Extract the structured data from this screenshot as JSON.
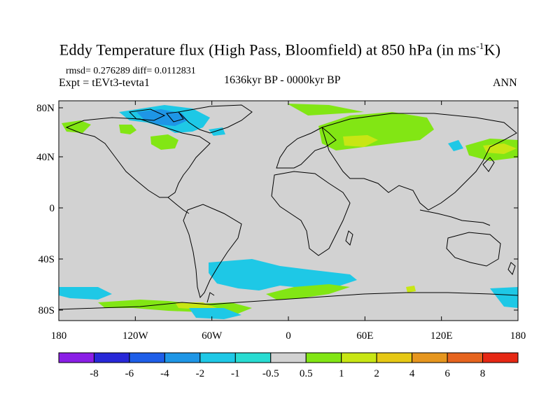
{
  "title": {
    "main": "Eddy Temperature flux (High Pass, Bloomfield) at 850 hPa (in ms",
    "sup": "-1",
    "tail": "K)"
  },
  "stats": {
    "rmsd_label": "rmsd=",
    "rmsd": "0.276289",
    "diff_label": "diff=",
    "diff": "0.0112831"
  },
  "experiment": "Expt = tEVt3-tevta1",
  "period": "1636kyr BP - 0000kyr BP",
  "season": "ANN",
  "map": {
    "lat_ticks": [
      "80N",
      "40N",
      "0",
      "40S",
      "80S"
    ],
    "lon_ticks": [
      "180",
      "120W",
      "60W",
      "0",
      "60E",
      "120E",
      "180"
    ],
    "background_color": "#d2d2d2"
  },
  "colorbar": {
    "labels": [
      "-8",
      "-6",
      "-4",
      "-2",
      "-1",
      "-0.5",
      "0.5",
      "1",
      "2",
      "4",
      "6",
      "8"
    ],
    "colors": [
      "#8a1ee6",
      "#2828d8",
      "#1e5ee8",
      "#1e96e6",
      "#1ec8e6",
      "#28dcd2",
      "#d2d2d2",
      "#82e614",
      "#c8e614",
      "#e6c814",
      "#e6961e",
      "#e6641e",
      "#e62814"
    ]
  }
}
